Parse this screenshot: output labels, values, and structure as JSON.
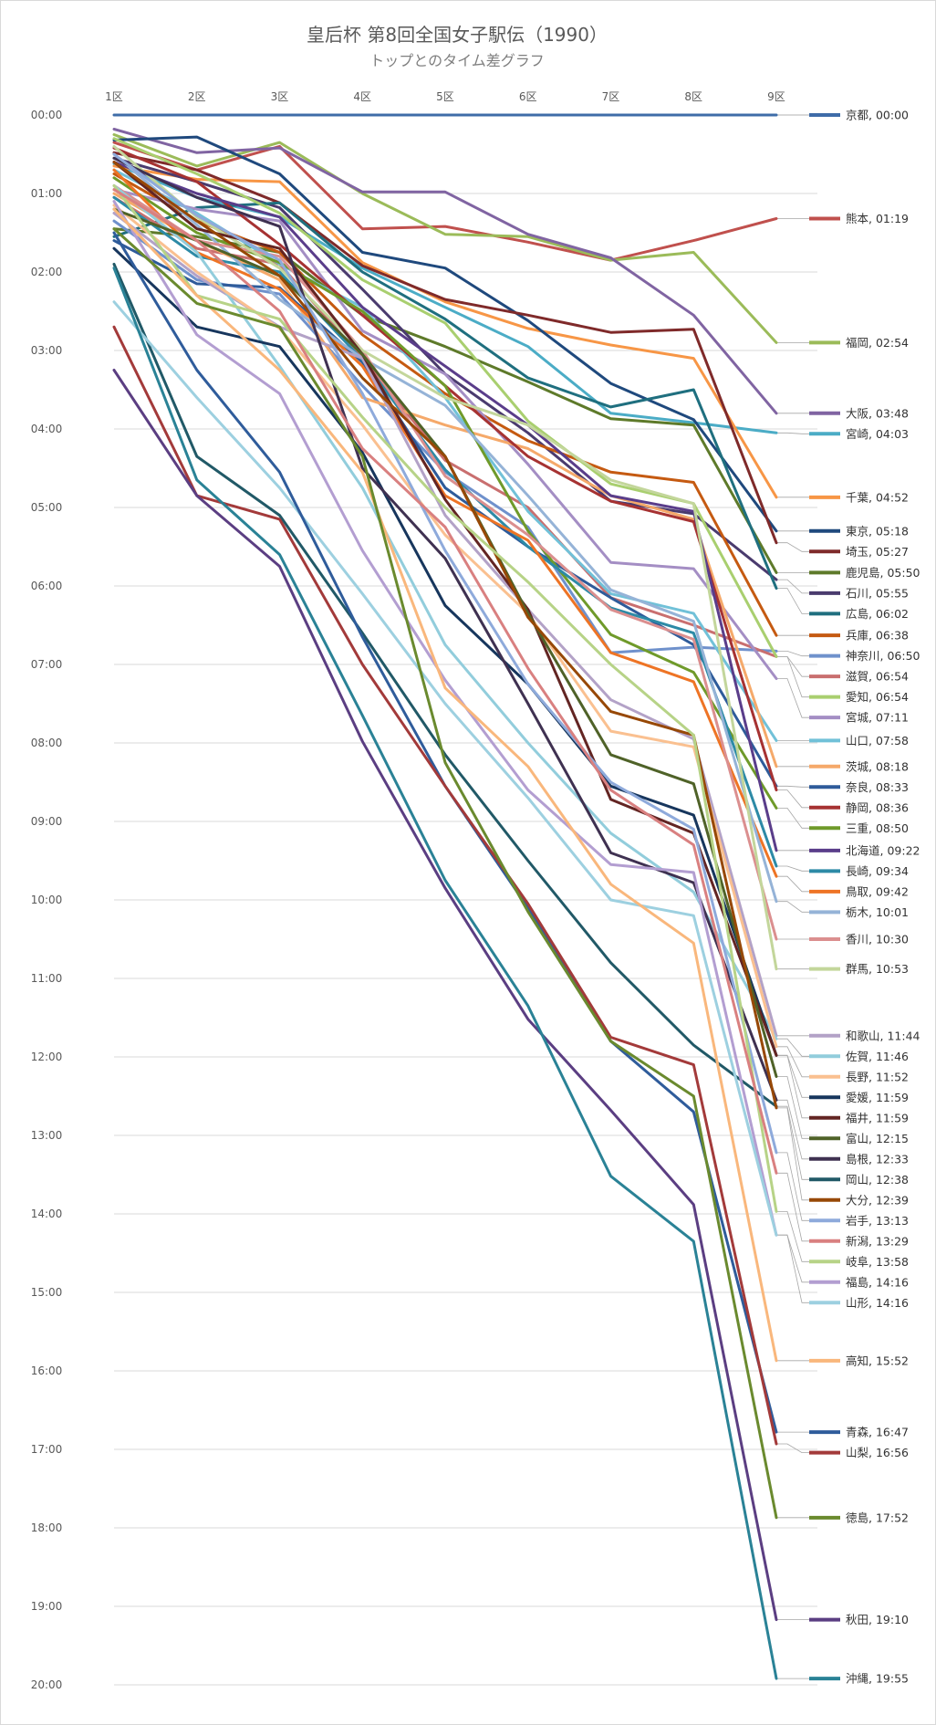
{
  "chart_data": {
    "type": "line",
    "title": "皇后杯 第8回全国女子駅伝（1990）",
    "subtitle": "トップとのタイム差グラフ",
    "categories": [
      "1区",
      "2区",
      "3区",
      "4区",
      "5区",
      "6区",
      "7区",
      "8区",
      "9区"
    ],
    "y_ticks": [
      "00:00",
      "01:00",
      "02:00",
      "03:00",
      "04:00",
      "05:00",
      "06:00",
      "07:00",
      "08:00",
      "09:00",
      "10:00",
      "11:00",
      "12:00",
      "13:00",
      "14:00",
      "15:00",
      "16:00",
      "17:00",
      "18:00",
      "19:00",
      "20:00"
    ],
    "ylim": [
      0,
      20
    ],
    "y_unit": "minutes behind leader (mm:ss)",
    "y_inverted": true,
    "grid": true,
    "legend": "right, end-of-line labels",
    "series": [
      {
        "label": "京都, 00:00",
        "color": "#3e6ca8",
        "values": [
          0,
          0,
          0,
          0,
          0,
          0,
          0,
          0,
          0
        ]
      },
      {
        "label": "熊本, 01:19",
        "color": "#c0504d",
        "values": [
          0.35,
          0.7,
          0.4,
          1.45,
          1.42,
          1.62,
          1.85,
          1.6,
          1.32
        ]
      },
      {
        "label": "福岡, 02:54",
        "color": "#9bbb59",
        "values": [
          0.25,
          0.65,
          0.35,
          1.0,
          1.52,
          1.55,
          1.85,
          1.75,
          2.9
        ]
      },
      {
        "label": "大阪, 03:48",
        "color": "#8064a2",
        "values": [
          0.18,
          0.48,
          0.42,
          0.98,
          0.98,
          1.52,
          1.82,
          2.55,
          3.8
        ]
      },
      {
        "label": "宮崎, 04:03",
        "color": "#4bacc6",
        "values": [
          0.62,
          1.05,
          1.3,
          1.95,
          2.45,
          2.95,
          3.8,
          3.92,
          4.05
        ]
      },
      {
        "label": "千葉, 04:52",
        "color": "#f79646",
        "values": [
          0.65,
          0.82,
          0.85,
          1.88,
          2.38,
          2.72,
          2.93,
          3.1,
          4.87
        ]
      },
      {
        "label": "東京, 05:18",
        "color": "#1f497d",
        "values": [
          0.32,
          0.28,
          0.75,
          1.75,
          1.95,
          2.62,
          3.42,
          3.88,
          5.3
        ]
      },
      {
        "label": "埼玉, 05:27",
        "color": "#7f2a2a",
        "values": [
          0.48,
          0.7,
          1.12,
          1.92,
          2.35,
          2.55,
          2.77,
          2.73,
          5.45
        ]
      },
      {
        "label": "鹿児島, 05:50",
        "color": "#5e7a2a",
        "values": [
          1.45,
          1.55,
          1.75,
          2.55,
          2.95,
          3.4,
          3.87,
          3.95,
          5.83
        ]
      },
      {
        "label": "石川, 05:55",
        "color": "#4a3b6e",
        "values": [
          0.55,
          0.85,
          1.18,
          2.22,
          3.3,
          4.05,
          4.92,
          5.08,
          5.92
        ]
      },
      {
        "label": "広島, 06:02",
        "color": "#1f6f7f",
        "values": [
          1.55,
          1.18,
          1.12,
          2.0,
          2.6,
          3.35,
          3.72,
          3.5,
          6.03
        ]
      },
      {
        "label": "兵庫, 06:38",
        "color": "#c55a11",
        "values": [
          0.75,
          1.35,
          1.75,
          2.8,
          3.55,
          4.15,
          4.55,
          4.68,
          6.63
        ]
      },
      {
        "label": "神奈川, 06:50",
        "color": "#6f91cc",
        "values": [
          1.35,
          2.1,
          2.28,
          3.45,
          4.55,
          5.25,
          6.85,
          6.78,
          6.83
        ]
      },
      {
        "label": "滋賀, 06:54",
        "color": "#c96f6f",
        "values": [
          1.05,
          1.7,
          1.9,
          3.1,
          4.4,
          5.0,
          6.15,
          6.5,
          6.9
        ]
      },
      {
        "label": "愛知, 06:54",
        "color": "#a9cf6f",
        "values": [
          0.3,
          0.75,
          1.25,
          2.1,
          2.65,
          3.9,
          4.7,
          4.95,
          6.9
        ]
      },
      {
        "label": "宮城, 07:11",
        "color": "#a48ec4",
        "values": [
          0.95,
          1.2,
          1.35,
          2.75,
          3.3,
          4.45,
          5.7,
          5.78,
          7.18
        ]
      },
      {
        "label": "山口, 07:58",
        "color": "#71c1d8",
        "values": [
          0.7,
          1.25,
          1.9,
          2.45,
          3.6,
          5.05,
          6.1,
          6.35,
          7.97
        ]
      },
      {
        "label": "茨城, 08:18",
        "color": "#f5a96a",
        "values": [
          1.0,
          1.6,
          2.1,
          3.6,
          3.95,
          4.25,
          4.85,
          5.15,
          8.3
        ]
      },
      {
        "label": "奈良, 08:33",
        "color": "#2e5b9a",
        "values": [
          1.6,
          2.15,
          2.2,
          3.15,
          4.75,
          5.5,
          6.15,
          6.75,
          8.55
        ]
      },
      {
        "label": "静岡, 08:36",
        "color": "#a63232",
        "values": [
          0.42,
          0.85,
          1.65,
          2.55,
          3.45,
          4.35,
          4.92,
          5.18,
          8.6
        ]
      },
      {
        "label": "三重, 08:50",
        "color": "#6f9a2a",
        "values": [
          0.8,
          1.5,
          1.88,
          2.5,
          3.45,
          5.3,
          6.62,
          7.1,
          8.83
        ]
      },
      {
        "label": "北海道, 09:22",
        "color": "#5a3d8a",
        "values": [
          0.6,
          1.0,
          1.3,
          2.45,
          3.2,
          3.95,
          4.85,
          5.05,
          9.37
        ]
      },
      {
        "label": "長崎, 09:34",
        "color": "#2d8aa6",
        "values": [
          1.05,
          1.8,
          2.0,
          3.12,
          4.52,
          5.5,
          6.28,
          6.6,
          9.57
        ]
      },
      {
        "label": "鳥取, 09:42",
        "color": "#ee7425",
        "values": [
          0.7,
          1.75,
          2.22,
          3.2,
          4.85,
          5.42,
          6.85,
          7.22,
          9.7
        ]
      },
      {
        "label": "栃木, 10:01",
        "color": "#95b3d7",
        "values": [
          0.5,
          1.4,
          2.35,
          3.1,
          3.7,
          4.85,
          6.05,
          6.45,
          10.02
        ]
      },
      {
        "label": "香川, 10:30",
        "color": "#db8f8f",
        "values": [
          0.9,
          1.6,
          1.8,
          3.0,
          4.6,
          5.35,
          6.3,
          6.68,
          10.5
        ]
      },
      {
        "label": "群馬, 10:53",
        "color": "#c3d69b",
        "values": [
          0.4,
          1.3,
          1.95,
          3.0,
          3.6,
          3.95,
          4.65,
          4.95,
          10.88
        ]
      },
      {
        "label": "和歌山, 11:44",
        "color": "#b3a2c7",
        "values": [
          1.25,
          2.05,
          2.7,
          3.1,
          5.1,
          6.3,
          7.45,
          7.95,
          11.73
        ]
      },
      {
        "label": "佐賀, 11:46",
        "color": "#92cddc",
        "values": [
          0.9,
          1.75,
          3.2,
          4.75,
          6.75,
          8.0,
          9.15,
          9.9,
          11.77
        ]
      },
      {
        "label": "長野, 11:52",
        "color": "#fac090",
        "values": [
          1.15,
          2.0,
          2.72,
          3.95,
          5.35,
          6.35,
          7.85,
          8.05,
          11.87
        ]
      },
      {
        "label": "愛媛, 11:59",
        "color": "#17365d",
        "values": [
          1.7,
          2.7,
          2.95,
          4.3,
          6.25,
          7.25,
          8.55,
          8.92,
          11.98
        ]
      },
      {
        "label": "福井, 11:59",
        "color": "#632523",
        "values": [
          0.6,
          1.45,
          1.7,
          3.05,
          4.9,
          6.3,
          8.72,
          9.15,
          11.98
        ]
      },
      {
        "label": "富山, 12:15",
        "color": "#4f6228",
        "values": [
          1.2,
          1.6,
          2.05,
          3.05,
          4.35,
          6.35,
          8.15,
          8.52,
          12.25
        ]
      },
      {
        "label": "島根, 12:33",
        "color": "#3f3151",
        "values": [
          0.55,
          1.05,
          1.42,
          4.5,
          5.65,
          7.5,
          9.4,
          9.78,
          12.55
        ]
      },
      {
        "label": "岡山, 12:38",
        "color": "#215967",
        "values": [
          1.9,
          4.35,
          5.1,
          6.6,
          8.15,
          9.5,
          10.8,
          11.85,
          12.63
        ]
      },
      {
        "label": "大分, 12:39",
        "color": "#974806",
        "values": [
          0.6,
          1.35,
          2.05,
          3.35,
          4.35,
          6.4,
          7.6,
          7.9,
          12.65
        ]
      },
      {
        "label": "岩手, 13:13",
        "color": "#8eaadb",
        "values": [
          0.5,
          1.28,
          1.85,
          3.55,
          5.55,
          7.25,
          8.5,
          9.1,
          13.22
        ]
      },
      {
        "label": "岐阜, 13:58",
        "color": "#b7d387",
        "values": [
          0.9,
          2.3,
          2.6,
          3.85,
          5.0,
          5.95,
          7.0,
          7.9,
          13.97
        ]
      },
      {
        "label": "福島, 14:16",
        "color": "#b39ed1",
        "values": [
          1.1,
          2.8,
          3.55,
          5.55,
          7.2,
          8.6,
          9.55,
          9.65,
          14.27
        ]
      },
      {
        "label": "山形, 14:16",
        "color": "#9dd0e0",
        "values": [
          2.38,
          3.6,
          4.75,
          6.1,
          7.5,
          8.7,
          10.0,
          10.2,
          14.27
        ]
      },
      {
        "label": "新潟, 13:29",
        "color": "#d98080",
        "values": [
          0.95,
          1.6,
          2.5,
          4.25,
          5.25,
          7.05,
          8.6,
          9.3,
          13.48
        ]
      },
      {
        "label": "高知, 15:52",
        "color": "#f9b77c",
        "values": [
          1.2,
          2.3,
          3.25,
          4.55,
          7.3,
          8.3,
          9.8,
          10.55,
          15.87
        ]
      },
      {
        "label": "青森, 16:47",
        "color": "#2f5c9b",
        "values": [
          1.5,
          3.25,
          4.55,
          6.65,
          8.55,
          10.1,
          11.8,
          12.7,
          16.78
        ]
      },
      {
        "label": "山梨, 16:56",
        "color": "#a33a3a",
        "values": [
          2.7,
          4.85,
          5.15,
          7.0,
          8.55,
          10.05,
          11.75,
          12.1,
          16.93
        ]
      },
      {
        "label": "徳島, 17:52",
        "color": "#6a8a2e",
        "values": [
          1.45,
          2.4,
          2.7,
          4.35,
          8.25,
          10.15,
          11.8,
          12.5,
          17.87
        ]
      },
      {
        "label": "秋田, 19:10",
        "color": "#5b3e82",
        "values": [
          3.25,
          4.85,
          5.75,
          7.98,
          9.85,
          11.52,
          12.68,
          13.88,
          19.17
        ]
      },
      {
        "label": "沖縄, 19:55",
        "color": "#2a8296",
        "values": [
          1.95,
          4.65,
          5.6,
          7.65,
          9.75,
          11.35,
          13.52,
          14.35,
          19.92
        ]
      }
    ]
  }
}
